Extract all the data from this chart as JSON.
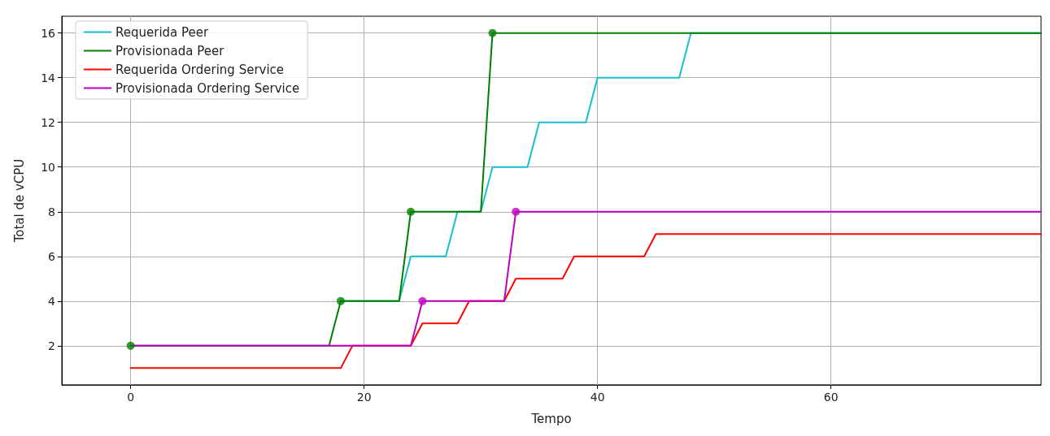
{
  "chart_data": {
    "type": "line",
    "xlabel": "Tempo",
    "ylabel": "Total de vCPU",
    "xlim": [
      -5.9,
      78
    ],
    "ylim": [
      0.25,
      16.75
    ],
    "xticks": [
      0,
      20,
      40,
      60
    ],
    "yticks": [
      2,
      4,
      6,
      8,
      10,
      12,
      14,
      16
    ],
    "grid": true,
    "legend": "top left",
    "marker": "none",
    "line_style": "solid",
    "series": [
      {
        "name": "Requerida Peer",
        "color": "#17becf",
        "x": [
          18,
          23,
          24,
          27,
          28,
          30,
          31,
          34,
          35,
          39,
          40,
          47,
          48,
          78
        ],
        "values": [
          4,
          4,
          6,
          6,
          8,
          8,
          10,
          10,
          12,
          12,
          14,
          14,
          16,
          16
        ]
      },
      {
        "name": "Provisionada Peer",
        "color": "#008000",
        "x": [
          0,
          17,
          18,
          23,
          24,
          30,
          31,
          78
        ],
        "values": [
          2,
          2,
          4,
          4,
          8,
          8,
          16,
          16
        ]
      },
      {
        "name": "Requerida Ordering Service",
        "color": "#ff0000",
        "x": [
          0,
          18,
          19,
          24,
          25,
          28,
          29,
          32,
          33,
          37,
          38,
          44,
          45,
          78
        ],
        "values": [
          1,
          1,
          2,
          2,
          3,
          3,
          4,
          4,
          5,
          5,
          6,
          6,
          7,
          7
        ]
      },
      {
        "name": "Provisionada Ordering Service",
        "color": "#bf00bf",
        "x": [
          0,
          24,
          25,
          32,
          33,
          78
        ],
        "values": [
          2,
          2,
          4,
          4,
          8,
          8
        ]
      },
      {
        "type": "scatter",
        "marker": "circle",
        "color": "#008000",
        "x": [
          0,
          18,
          24,
          31
        ],
        "values": [
          2,
          4,
          8,
          16
        ]
      },
      {
        "type": "scatter",
        "marker": "circle",
        "color": "#bf00bf",
        "x": [
          25,
          33
        ],
        "values": [
          4,
          8
        ]
      }
    ]
  }
}
